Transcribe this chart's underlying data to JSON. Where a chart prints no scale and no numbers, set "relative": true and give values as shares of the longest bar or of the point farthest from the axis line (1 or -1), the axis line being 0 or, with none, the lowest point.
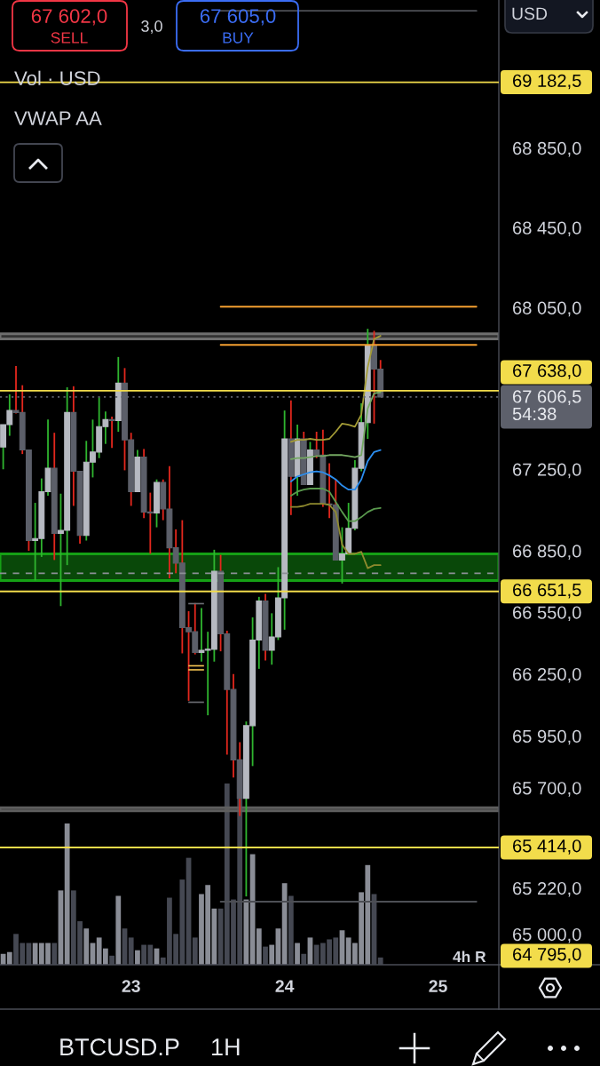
{
  "chart_data": [
    {
      "type": "candlestick",
      "categories": [
        null,
        null,
        null,
        null,
        null,
        null,
        null,
        null,
        null,
        null,
        null,
        null,
        null,
        null,
        null,
        null,
        null,
        null,
        null,
        null,
        "23",
        null,
        null,
        null,
        null,
        null,
        null,
        null,
        null,
        null,
        null,
        null,
        null,
        null,
        null,
        null,
        null,
        null,
        null,
        null,
        null,
        null,
        null,
        null,
        "24",
        null,
        null,
        null,
        null,
        null,
        null,
        null,
        null,
        null,
        null,
        null,
        null,
        null,
        null,
        null,
        null,
        null,
        null,
        null,
        null,
        null,
        null,
        null,
        "25",
        null,
        null,
        null,
        null,
        null,
        null,
        null,
        null,
        null
      ],
      "ohlc": [
        [
          67360,
          67470,
          67250,
          67470
        ],
        [
          67470,
          67620,
          67415,
          67540
        ],
        [
          67540,
          67760,
          67525,
          67530
        ],
        [
          67530,
          67665,
          67325,
          67345
        ],
        [
          67345,
          67345,
          66850,
          66900
        ],
        [
          66900,
          67085,
          66705,
          66910
        ],
        [
          66910,
          67205,
          66820,
          67140
        ],
        [
          67140,
          67495,
          67120,
          67255
        ],
        [
          67255,
          67430,
          66805,
          66935
        ],
        [
          66935,
          67130,
          66580,
          66950
        ],
        [
          66950,
          67655,
          66780,
          67530
        ],
        [
          67530,
          67660,
          67070,
          67240
        ],
        [
          67240,
          67240,
          66885,
          66925
        ],
        [
          66925,
          67390,
          66900,
          67285
        ],
        [
          67285,
          67495,
          67210,
          67335
        ],
        [
          67335,
          67605,
          67305,
          67460
        ],
        [
          67460,
          67535,
          67375,
          67495
        ],
        [
          67495,
          67510,
          67355,
          67490
        ],
        [
          67490,
          67805,
          67435,
          67675
        ],
        [
          67675,
          67750,
          67245,
          67395
        ],
        [
          67395,
          67430,
          67070,
          67140
        ],
        [
          67140,
          67345,
          67140,
          67310
        ],
        [
          67310,
          67350,
          67010,
          67040
        ],
        [
          67040,
          67135,
          66835,
          67035
        ],
        [
          67035,
          67200,
          66965,
          67185
        ],
        [
          67185,
          67200,
          67000,
          67055
        ],
        [
          67055,
          67265,
          66715,
          66865
        ],
        [
          66865,
          66955,
          66740,
          66790
        ],
        [
          66790,
          67000,
          66350,
          66475
        ],
        [
          66475,
          66555,
          66120,
          66455
        ],
        [
          66455,
          66595,
          66345,
          66355
        ],
        [
          66355,
          66570,
          66310,
          66365
        ],
        [
          66365,
          66455,
          66050,
          66370
        ],
        [
          66370,
          66855,
          66310,
          66750
        ],
        [
          66750,
          66830,
          66360,
          66445
        ],
        [
          66445,
          66460,
          65860,
          66175
        ],
        [
          66175,
          66250,
          65750,
          65835
        ],
        [
          65835,
          65920,
          65565,
          65650
        ],
        [
          65650,
          66020,
          65180,
          66000
        ],
        [
          66000,
          66525,
          65805,
          66415
        ],
        [
          66415,
          66625,
          66275,
          66605
        ],
        [
          66605,
          66640,
          66315,
          66365
        ],
        [
          66365,
          66545,
          66295,
          66430
        ],
        [
          66430,
          66770,
          66415,
          66620
        ],
        [
          66620,
          67540,
          66465,
          67400
        ],
        [
          67400,
          67590,
          67025,
          67215
        ],
        [
          67215,
          67470,
          67120,
          67400
        ],
        [
          67400,
          67435,
          67175,
          67175
        ],
        [
          67175,
          67385,
          67175,
          67345
        ],
        [
          67345,
          67435,
          67305,
          67320
        ],
        [
          67320,
          67445,
          67065,
          67080
        ],
        [
          67080,
          67280,
          67010,
          67075
        ],
        [
          67075,
          67200,
          66805,
          66805
        ],
        [
          66805,
          66965,
          66690,
          66835
        ],
        [
          66835,
          67085,
          66835,
          66960
        ],
        [
          66960,
          67295,
          66950,
          67255
        ],
        [
          67255,
          67575,
          67240,
          67480
        ],
        [
          67480,
          67945,
          67400,
          67860
        ],
        [
          67860,
          67935,
          67475,
          67745
        ],
        [
          67745,
          67790,
          67606.5,
          67606.5
        ],
        null,
        null,
        null,
        null,
        null,
        null,
        null,
        null,
        null,
        null,
        null,
        null,
        null,
        null,
        null,
        null,
        null,
        null
      ],
      "log": "y",
      "ylim": [
        64855,
        69600
      ],
      "yticks": [
        {
          "value": 68850,
          "label": "68 850,0"
        },
        {
          "value": 68450,
          "label": "68 450,0"
        },
        {
          "value": 68050,
          "label": "68 050,0"
        },
        {
          "value": 67250,
          "label": "67 250,0"
        },
        {
          "value": 66850,
          "label": "66 850,0"
        },
        {
          "value": 66550,
          "label": "66 550,0"
        },
        {
          "value": 66250,
          "label": "66 250,0"
        },
        {
          "value": 65950,
          "label": "65 950,0"
        },
        {
          "value": 65700,
          "label": "65 700,0"
        },
        {
          "value": 65220,
          "label": "65 220,0"
        },
        {
          "value": 65000,
          "label": "65 000,0"
        }
      ],
      "series": [
        {
          "type": "line",
          "values": [
            null,
            null,
            null,
            null,
            null,
            null,
            null,
            null,
            null,
            null,
            null,
            null,
            null,
            null,
            null,
            null,
            null,
            null,
            null,
            null,
            null,
            null,
            null,
            null,
            null,
            null,
            null,
            null,
            null,
            null,
            null,
            null,
            null,
            null,
            null,
            null,
            null,
            null,
            null,
            null,
            null,
            null,
            null,
            null,
            null,
            67385,
            67395,
            67395,
            67400,
            67395,
            67395,
            67400,
            67435,
            67475,
            67470,
            67460,
            67520,
            67755,
            67895,
            67910,
            null,
            null,
            null,
            null,
            null,
            null,
            null,
            null,
            null,
            null,
            null,
            null,
            null,
            null,
            null,
            null,
            null,
            null
          ],
          "color": "#a39b36"
        },
        {
          "type": "line",
          "values": [
            null,
            null,
            null,
            null,
            null,
            null,
            null,
            null,
            null,
            null,
            null,
            null,
            null,
            null,
            null,
            null,
            null,
            null,
            null,
            null,
            null,
            null,
            null,
            null,
            null,
            null,
            null,
            null,
            null,
            null,
            null,
            null,
            null,
            null,
            null,
            null,
            null,
            null,
            null,
            null,
            null,
            null,
            null,
            null,
            null,
            67300,
            67305,
            67305,
            67310,
            67315,
            67315,
            67320,
            67320,
            67320,
            67315,
            67310,
            67320,
            67550,
            67625,
            67630,
            null,
            null,
            null,
            null,
            null,
            null,
            null,
            null,
            null,
            null,
            null,
            null,
            null,
            null,
            null,
            null,
            null,
            null
          ],
          "color": "#74a862"
        },
        {
          "type": "line",
          "values": [
            null,
            null,
            null,
            null,
            null,
            null,
            null,
            null,
            null,
            null,
            null,
            null,
            null,
            null,
            null,
            null,
            null,
            null,
            null,
            null,
            null,
            null,
            null,
            null,
            null,
            null,
            null,
            null,
            null,
            null,
            null,
            null,
            null,
            null,
            null,
            null,
            null,
            null,
            null,
            null,
            null,
            null,
            null,
            null,
            null,
            67190,
            67215,
            67225,
            67235,
            67240,
            67235,
            67220,
            67200,
            67170,
            67150,
            67150,
            67200,
            67290,
            67335,
            67345,
            null,
            null,
            null,
            null,
            null,
            null,
            null,
            null,
            null,
            null,
            null,
            null,
            null,
            null,
            null,
            null,
            null,
            null
          ],
          "color": "#2b8ef0"
        },
        {
          "type": "line",
          "values": [
            null,
            null,
            null,
            null,
            null,
            null,
            null,
            null,
            null,
            null,
            null,
            null,
            null,
            null,
            null,
            null,
            null,
            null,
            null,
            null,
            null,
            null,
            null,
            null,
            null,
            null,
            null,
            null,
            null,
            null,
            null,
            null,
            null,
            null,
            null,
            null,
            null,
            null,
            null,
            null,
            null,
            null,
            null,
            null,
            null,
            67120,
            67140,
            67150,
            67155,
            67155,
            67155,
            67140,
            67090,
            67040,
            66995,
            66995,
            67015,
            67040,
            67055,
            67060,
            null,
            null,
            null,
            null,
            null,
            null,
            null,
            null,
            null,
            null,
            null,
            null,
            null,
            null,
            null,
            null,
            null,
            null
          ],
          "color": "#5a9a4e"
        },
        {
          "type": "line",
          "values": [
            null,
            null,
            null,
            null,
            null,
            null,
            null,
            null,
            null,
            null,
            null,
            null,
            null,
            null,
            null,
            null,
            null,
            null,
            null,
            null,
            null,
            null,
            null,
            null,
            null,
            null,
            null,
            null,
            null,
            null,
            null,
            null,
            null,
            null,
            null,
            null,
            null,
            null,
            null,
            null,
            null,
            null,
            null,
            null,
            null,
            67065,
            67065,
            67070,
            67080,
            67080,
            67080,
            67075,
            67040,
            66880,
            66835,
            66835,
            66845,
            66765,
            66780,
            66780,
            null,
            null,
            null,
            null,
            null,
            null,
            null,
            null,
            null,
            null,
            null,
            null,
            null,
            null,
            null,
            null,
            null,
            null
          ],
          "color": "#8f8a2e"
        },
        {
          "type": "line",
          "values": [
            null,
            null,
            null,
            null,
            null,
            null,
            null,
            null,
            null,
            null,
            null,
            null,
            null,
            null,
            null,
            null,
            null,
            null,
            null,
            null,
            null,
            null,
            null,
            null,
            null,
            null,
            null,
            null,
            null,
            null,
            null,
            null,
            null,
            null,
            68055,
            68055,
            68055,
            68055,
            68055,
            68055,
            68055,
            68055,
            68055,
            68055,
            68055,
            68055,
            68055,
            68055,
            68055,
            68055,
            68055,
            68055,
            68055,
            68055,
            68055,
            68055,
            68055,
            68055,
            68055,
            68055,
            68055,
            68055,
            68055,
            68055,
            68055,
            68055,
            68055,
            68055,
            68055,
            68055,
            68055,
            68055,
            68055,
            68055,
            68055,
            null,
            null,
            null
          ],
          "color": "#f5a030"
        },
        {
          "type": "line",
          "values": [
            null,
            null,
            null,
            null,
            null,
            null,
            null,
            null,
            null,
            null,
            null,
            null,
            null,
            null,
            null,
            null,
            null,
            null,
            null,
            null,
            null,
            null,
            null,
            null,
            null,
            null,
            null,
            null,
            null,
            null,
            null,
            null,
            null,
            null,
            67865,
            67865,
            67865,
            67865,
            67865,
            67865,
            67865,
            67865,
            67865,
            67865,
            67865,
            67865,
            67865,
            67865,
            67865,
            67865,
            67865,
            67865,
            67865,
            67865,
            67865,
            67865,
            67865,
            67865,
            67865,
            67865,
            67865,
            67865,
            67865,
            67865,
            67865,
            67865,
            67865,
            67865,
            67865,
            67865,
            67865,
            67865,
            67865,
            67865,
            67865,
            null,
            null,
            null
          ],
          "color": "#f5a030"
        },
        {
          "type": "line",
          "values": [
            null,
            null,
            null,
            null,
            null,
            null,
            null,
            null,
            null,
            null,
            null,
            null,
            null,
            null,
            null,
            null,
            null,
            null,
            null,
            null,
            null,
            null,
            null,
            null,
            null,
            null,
            null,
            null,
            null,
            null,
            null,
            null,
            null,
            null,
            69545,
            69545,
            69545,
            69545,
            69545,
            69545,
            69545,
            69545,
            69545,
            69545,
            69545,
            69545,
            69545,
            69545,
            69545,
            69545,
            69545,
            69545,
            69545,
            69545,
            69545,
            69545,
            69545,
            69545,
            69545,
            69545,
            69545,
            69545,
            69545,
            69545,
            69545,
            69545,
            69545,
            69545,
            69545,
            69545,
            69545,
            69545,
            69545,
            69545,
            69545,
            null,
            null,
            null
          ],
          "color": "#4d4f55"
        },
        {
          "type": "line",
          "values": [
            null,
            null,
            null,
            null,
            null,
            null,
            null,
            null,
            null,
            null,
            null,
            null,
            null,
            null,
            null,
            null,
            null,
            null,
            null,
            null,
            null,
            null,
            null,
            null,
            null,
            null,
            null,
            null,
            null,
            null,
            null,
            null,
            null,
            null,
            65155,
            65155,
            65155,
            65155,
            65155,
            65155,
            65155,
            65155,
            65155,
            65155,
            65155,
            65155,
            65155,
            65155,
            65155,
            65155,
            65155,
            65155,
            65155,
            65155,
            65155,
            65155,
            65155,
            65155,
            65155,
            65155,
            65155,
            65155,
            65155,
            65155,
            65155,
            65155,
            65155,
            65155,
            65155,
            65155,
            65155,
            65155,
            65155,
            65155,
            65155,
            null,
            null,
            null
          ],
          "color": "#4d4f55"
        }
      ],
      "bands": [
        {
          "axis": "y",
          "from": 67895,
          "to": 67920,
          "color": "#6e6e6e"
        },
        {
          "axis": "y",
          "from": 66705,
          "to": 66835,
          "color": "#15a015"
        },
        {
          "axis": "y",
          "from": 65590,
          "to": 65605,
          "color": "#5e5e5e"
        }
      ],
      "ref_lines": [
        {
          "axis": "y",
          "value": 69182.5,
          "label": "69 182,5",
          "color": "#f2dc4b"
        },
        {
          "axis": "y",
          "value": 67638,
          "label": "67 638,0",
          "color": "#f2dc4b"
        },
        {
          "axis": "y",
          "value": 67606.5,
          "label": "67 606,5\n54:38",
          "color": "#5d606b",
          "line_style": "dotted"
        },
        {
          "axis": "y",
          "value": 66740,
          "color": "#8c8f96",
          "line_style": "dashed"
        },
        {
          "axis": "y",
          "value": 66651.5,
          "label": "66 651,5",
          "color": "#f2dc4b"
        },
        {
          "axis": "y",
          "value": 65414,
          "label": "65 414,0",
          "color": "#f2dc4b"
        }
      ],
      "annotations": [
        "67 602,0",
        "SELL",
        "3,0",
        "67 605,0",
        "BUY",
        "Vol · USD",
        "VWAP AA",
        "USD",
        "BTCUSD.P",
        "1H",
        "4h R",
        "64 795,0"
      ]
    },
    {
      "type": "bar",
      "relative": true,
      "categories": [
        null,
        null,
        null,
        null,
        null,
        null,
        null,
        null,
        null,
        null,
        null,
        null,
        null,
        null,
        null,
        null,
        null,
        null,
        null,
        null,
        null,
        null,
        null,
        null,
        null,
        null,
        null,
        null,
        null,
        null,
        null,
        null,
        null,
        null,
        null,
        null,
        null,
        null,
        null,
        null,
        null,
        null,
        null,
        null,
        null,
        null,
        null,
        null,
        null,
        null,
        null,
        null,
        null,
        null,
        null,
        null,
        null,
        null,
        null,
        null
      ],
      "values": [
        0.06,
        0.07,
        0.17,
        0.12,
        0.12,
        0.12,
        0.12,
        0.12,
        0.12,
        0.41,
        0.78,
        0.41,
        0.24,
        0.2,
        0.12,
        0.15,
        0.09,
        0.05,
        0.38,
        0.2,
        0.15,
        0.08,
        0.11,
        0.11,
        0.09,
        0.04,
        0.37,
        0.17,
        0.47,
        0.59,
        0.15,
        0.39,
        0.44,
        0.31,
        0.31,
        1,
        0.36,
        0.92,
        0.36,
        0.61,
        0.2,
        0.1,
        0.11,
        0.2,
        0.45,
        0.38,
        0.12,
        0.06,
        0.15,
        0.11,
        0.12,
        0.14,
        0.15,
        0.19,
        0.15,
        0.12,
        0.4,
        0.55,
        0.39,
        0.04
      ],
      "colors": [
        "#8a8d96",
        "#8a8d96",
        "#454852",
        "#454852",
        "#454852",
        "#8a8d96",
        "#8a8d96",
        "#8a8d96",
        "#454852",
        "#8a8d96",
        "#8a8d96",
        "#454852",
        "#454852",
        "#8a8d96",
        "#8a8d96",
        "#8a8d96",
        "#8a8d96",
        "#454852",
        "#8a8d96",
        "#454852",
        "#454852",
        "#8a8d96",
        "#454852",
        "#454852",
        "#8a8d96",
        "#454852",
        "#454852",
        "#454852",
        "#454852",
        "#454852",
        "#454852",
        "#8a8d96",
        "#8a8d96",
        "#8a8d96",
        "#454852",
        "#454852",
        "#454852",
        "#454852",
        "#8a8d96",
        "#8a8d96",
        "#8a8d96",
        "#454852",
        "#8a8d96",
        "#8a8d96",
        "#8a8d96",
        "#454852",
        "#8a8d96",
        "#454852",
        "#8a8d96",
        "#454852",
        "#454852",
        "#454852",
        "#454852",
        "#8a8d96",
        "#8a8d96",
        "#8a8d96",
        "#8a8d96",
        "#8a8d96",
        "#454852",
        "#454852"
      ]
    }
  ]
}
